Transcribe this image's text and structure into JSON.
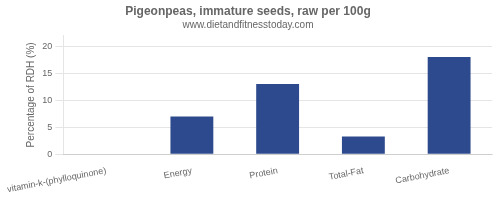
{
  "chart_data": {
    "type": "bar",
    "title": "Pigeonpeas, immature seeds, raw per 100g",
    "subtitle": "www.dietandfitnesstoday.com",
    "categories": [
      "vitamin-k-(phylloquinone)",
      "Energy",
      "Protein",
      "Total-Fat",
      "Carbohydrate"
    ],
    "values": [
      0,
      7,
      13,
      3.3,
      18
    ],
    "color": "#2e4a8e",
    "ylabel": "Percentage of RDH (%)",
    "ylim": [
      0,
      22
    ],
    "yticks": [
      0,
      5,
      10,
      15,
      20
    ],
    "grid": true
  }
}
